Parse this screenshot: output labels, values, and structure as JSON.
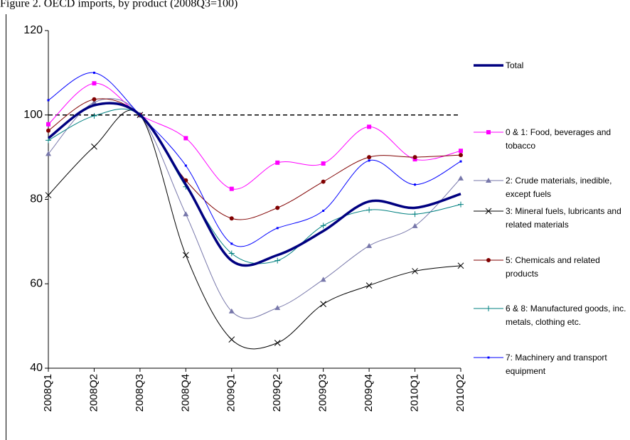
{
  "chart_data": {
    "type": "line",
    "title": "Figure 2. OECD imports, by product (2008Q3=100)",
    "categories": [
      "2008Q1",
      "2008Q2",
      "2008Q3",
      "2008Q4",
      "2009Q1",
      "2009Q2",
      "2009Q3",
      "2009Q4",
      "2010Q1",
      "2010Q2"
    ],
    "ylim": [
      40,
      120
    ],
    "yticks": [
      40,
      60,
      80,
      100,
      120
    ],
    "reference_line": 100,
    "smooth": true,
    "series": [
      {
        "name": "Total",
        "color": "#000080",
        "marker": "none",
        "width": 3.5,
        "values": [
          94.5,
          102.3,
          100,
          83.5,
          65.5,
          66.8,
          72.5,
          79.5,
          78,
          81.3
        ]
      },
      {
        "name": "0 & 1: Food, beverages and tobacco",
        "color": "#ff00ff",
        "marker": "square",
        "width": 1,
        "values": [
          97.8,
          107.5,
          100,
          94.5,
          82.5,
          88.7,
          88.5,
          97.2,
          89.5,
          91.5
        ]
      },
      {
        "name": "2: Crude materials, inedible, except fuels",
        "color": "#7777aa",
        "marker": "triangle",
        "width": 1,
        "values": [
          90.8,
          103,
          100,
          76.5,
          53.5,
          54.3,
          61,
          69,
          73.7,
          85
        ]
      },
      {
        "name": "3: Mineral fuels, lubricants and related materials",
        "color": "#000000",
        "marker": "x",
        "width": 1,
        "values": [
          81,
          92.5,
          100,
          66.8,
          46.8,
          46,
          55.2,
          59.6,
          63,
          64.3
        ]
      },
      {
        "name": "5: Chemicals and related products",
        "color": "#800000",
        "marker": "circle",
        "width": 1,
        "values": [
          96.3,
          103.7,
          100,
          84.5,
          75.5,
          78,
          84.2,
          90,
          90,
          90.5
        ]
      },
      {
        "name": "6 & 8: Manufactured goods, inc. metals, clothing etc.",
        "color": "#008080",
        "marker": "plus",
        "width": 1,
        "values": [
          94,
          99.8,
          100,
          83,
          67.2,
          65.5,
          73.8,
          77.5,
          76.5,
          78.8
        ]
      },
      {
        "name": "7: Machinery and transport equipment",
        "color": "#0000ff",
        "marker": "dot",
        "width": 1,
        "values": [
          103.5,
          110,
          100,
          88,
          69.5,
          73.2,
          77.3,
          89.2,
          83.5,
          89
        ]
      }
    ]
  }
}
